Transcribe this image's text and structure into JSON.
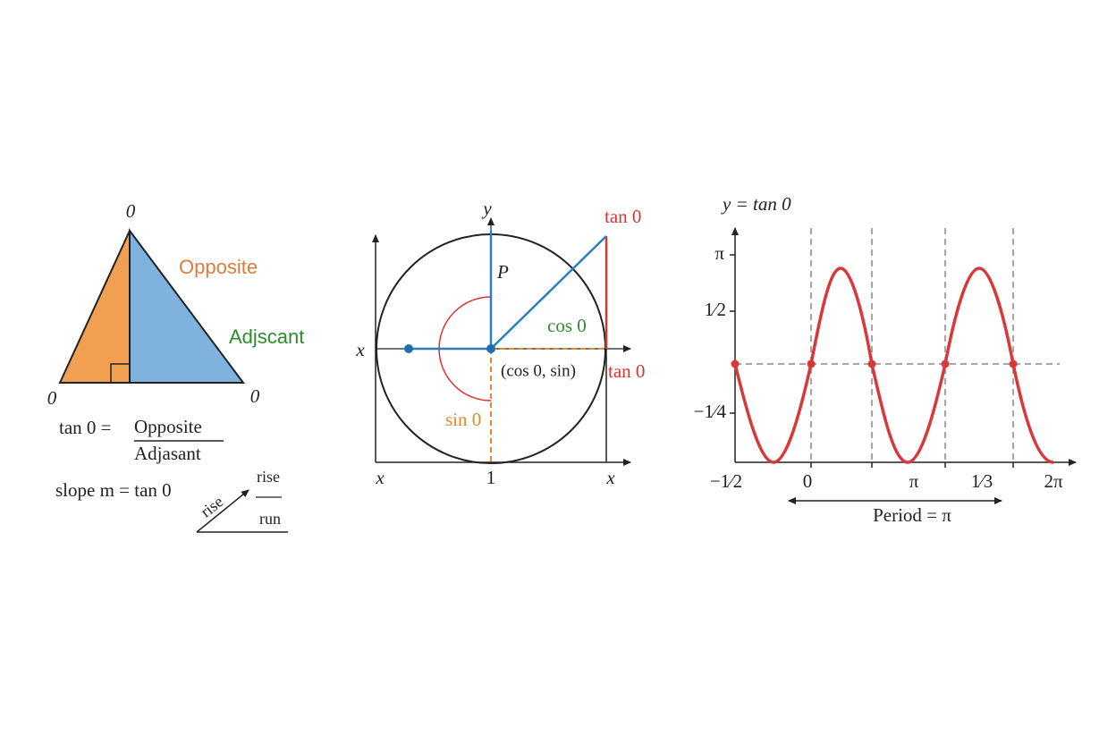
{
  "triangle": {
    "top_label": "0",
    "opposite": "Opposite",
    "adjacent": "Adjscant",
    "left_label": "0",
    "right_label": "0",
    "formula": {
      "lhs": "tan 0 =",
      "numerator": "Opposite",
      "denominator": "Adjasant"
    },
    "slope": "slope m = tan 0",
    "slope_arrow_label": "rise",
    "fraction_top": "rise",
    "fraction_bottom": "run"
  },
  "unit_circle": {
    "y_axis": "y",
    "tan_top": "tan 0",
    "point": "P",
    "cos": "cos 0",
    "x_left": "x",
    "coords": "(cos 0, sin)",
    "tan_right": "tan 0",
    "sin": "sin 0",
    "x_bottom_left": "x",
    "one": "1",
    "x_bottom_right": "x"
  },
  "graph": {
    "title": "y = tan 0",
    "y_labels": [
      "π",
      "1⁄2",
      "−1⁄4"
    ],
    "x_labels": [
      "−1⁄2",
      "0",
      "π",
      "1⁄3",
      "2π"
    ],
    "period": "Period = π"
  }
}
